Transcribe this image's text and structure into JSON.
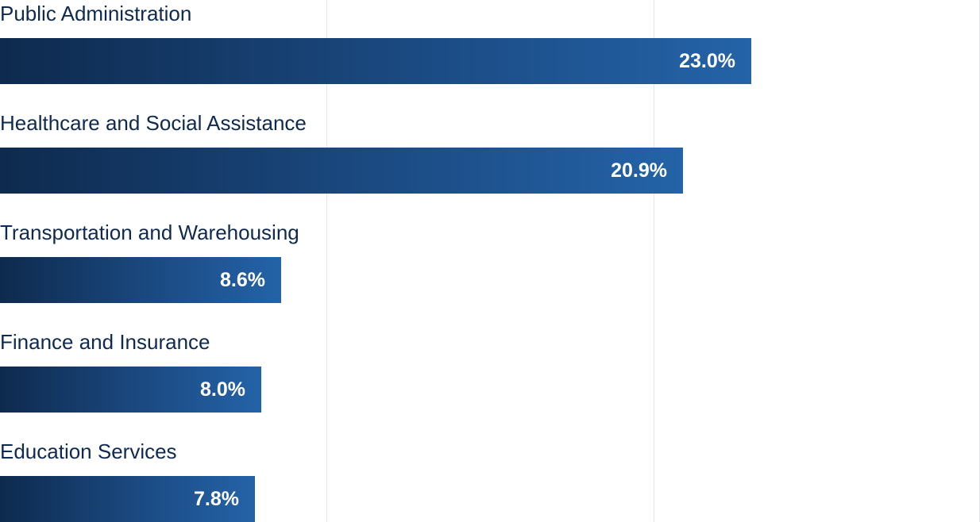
{
  "chart_data": {
    "type": "bar",
    "orientation": "horizontal",
    "categories": [
      "Public Administration",
      "Healthcare and Social Assistance",
      "Transportation and Warehousing",
      "Finance and Insurance",
      "Education Services"
    ],
    "values": [
      23.0,
      20.9,
      8.6,
      8.0,
      7.8
    ],
    "value_labels": [
      "23.0%",
      "20.9%",
      "8.6%",
      "8.0%",
      "7.8%"
    ],
    "xlim": [
      0,
      30
    ],
    "grid": true,
    "colors": {
      "bar_start": "#0e2a4e",
      "bar_end": "#2463a8",
      "label": "#0f2a4f",
      "grid": "#e3e6ec"
    }
  }
}
